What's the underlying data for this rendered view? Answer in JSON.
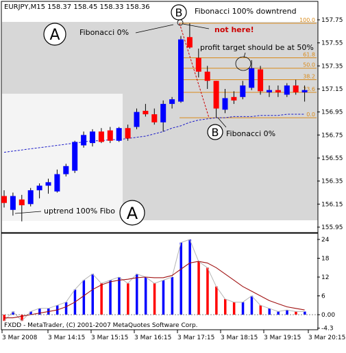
{
  "header": {
    "symbol_text": "EURJPY,M15  158.37 158.45 158.33 158.36",
    "footer_text": "FXDD - MetaTrader, (C) 2001-2007 MetaQuotes Software Corp."
  },
  "annotations": {
    "label_a_top": "A",
    "label_a_bottom": "A",
    "label_b_top": "B",
    "label_b_bottom": "B",
    "fib0_top": "Fibonacci 0%",
    "fib100_down": "Fibonacci 100% downtrend",
    "not_here": "not here!",
    "profit_target": "profit target should be at 50%",
    "fib0_bottom": "Fibonacci 0%",
    "uptrend_fibo": "uptrend 100% Fibo"
  },
  "colors": {
    "bull": "#0000ff",
    "bear": "#ff0000",
    "ma": "#1a1ac8",
    "fib": "#d98a1a",
    "signal": "#cc0000",
    "gray_line": "#b4b4b4",
    "shade": "#d7d7d7"
  },
  "chart_data": [
    {
      "type": "candlestick",
      "title": "EURJPY,M15",
      "ylim": [
        155.9,
        157.8
      ],
      "yticks": [
        "157.75",
        "157.55",
        "157.35",
        "157.15",
        "156.95",
        "156.75",
        "156.55",
        "156.35",
        "156.15",
        "155.95"
      ],
      "ytick_values": [
        157.75,
        157.55,
        157.35,
        157.15,
        156.95,
        156.75,
        156.55,
        156.35,
        156.15,
        155.95
      ],
      "candles": [
        {
          "o": 156.22,
          "h": 156.27,
          "l": 156.12,
          "c": 156.16
        },
        {
          "o": 156.1,
          "h": 156.25,
          "l": 156.05,
          "c": 156.22
        },
        {
          "o": 156.19,
          "h": 156.23,
          "l": 156.0,
          "c": 156.14
        },
        {
          "o": 156.15,
          "h": 156.29,
          "l": 156.13,
          "c": 156.27
        },
        {
          "o": 156.27,
          "h": 156.33,
          "l": 156.2,
          "c": 156.31
        },
        {
          "o": 156.31,
          "h": 156.37,
          "l": 156.24,
          "c": 156.34
        },
        {
          "o": 156.26,
          "h": 156.45,
          "l": 156.25,
          "c": 156.41
        },
        {
          "o": 156.41,
          "h": 156.5,
          "l": 156.39,
          "c": 156.48
        },
        {
          "o": 156.44,
          "h": 156.7,
          "l": 156.42,
          "c": 156.69
        },
        {
          "o": 156.66,
          "h": 156.78,
          "l": 156.64,
          "c": 156.75
        },
        {
          "o": 156.68,
          "h": 156.8,
          "l": 156.65,
          "c": 156.78
        },
        {
          "o": 156.78,
          "h": 156.81,
          "l": 156.68,
          "c": 156.69
        },
        {
          "o": 156.79,
          "h": 156.82,
          "l": 156.68,
          "c": 156.7
        },
        {
          "o": 156.7,
          "h": 156.82,
          "l": 156.69,
          "c": 156.81
        },
        {
          "o": 156.81,
          "h": 156.84,
          "l": 156.7,
          "c": 156.72
        },
        {
          "o": 156.82,
          "h": 156.98,
          "l": 156.8,
          "c": 156.95
        },
        {
          "o": 156.96,
          "h": 157.02,
          "l": 156.91,
          "c": 156.93
        },
        {
          "o": 156.93,
          "h": 156.98,
          "l": 156.84,
          "c": 156.86
        },
        {
          "o": 156.86,
          "h": 157.05,
          "l": 156.78,
          "c": 157.02
        },
        {
          "o": 157.02,
          "h": 157.08,
          "l": 156.98,
          "c": 157.06
        },
        {
          "o": 157.04,
          "h": 157.61,
          "l": 157.03,
          "c": 157.58
        },
        {
          "o": 157.6,
          "h": 157.72,
          "l": 157.5,
          "c": 157.51
        },
        {
          "o": 157.42,
          "h": 157.5,
          "l": 157.25,
          "c": 157.3
        },
        {
          "o": 157.3,
          "h": 157.35,
          "l": 157.15,
          "c": 157.22
        },
        {
          "o": 157.22,
          "h": 157.22,
          "l": 156.9,
          "c": 156.98
        },
        {
          "o": 156.97,
          "h": 157.15,
          "l": 156.94,
          "c": 157.07
        },
        {
          "o": 157.08,
          "h": 157.13,
          "l": 157.02,
          "c": 157.05
        },
        {
          "o": 157.08,
          "h": 157.22,
          "l": 157.06,
          "c": 157.18
        },
        {
          "o": 157.16,
          "h": 157.4,
          "l": 157.14,
          "c": 157.33
        },
        {
          "o": 157.32,
          "h": 157.35,
          "l": 157.1,
          "c": 157.13
        },
        {
          "o": 157.12,
          "h": 157.18,
          "l": 157.08,
          "c": 157.14
        },
        {
          "o": 157.14,
          "h": 157.18,
          "l": 157.08,
          "c": 157.12
        },
        {
          "o": 157.1,
          "h": 157.2,
          "l": 157.08,
          "c": 157.18
        },
        {
          "o": 157.18,
          "h": 157.23,
          "l": 157.1,
          "c": 157.12
        },
        {
          "o": 157.12,
          "h": 157.18,
          "l": 157.04,
          "c": 157.14
        }
      ],
      "moving_average": [
        156.6,
        156.61,
        156.62,
        156.63,
        156.64,
        156.65,
        156.66,
        156.67,
        156.68,
        156.69,
        156.7,
        156.7,
        156.71,
        156.71,
        156.72,
        156.73,
        156.74,
        156.76,
        156.78,
        156.81,
        156.83,
        156.86,
        156.88,
        156.89,
        156.9,
        156.9,
        156.91,
        156.91,
        156.91,
        156.92,
        156.92,
        156.92,
        156.93,
        156.93,
        156.93
      ],
      "fibonacci_levels": [
        {
          "label": "100.0",
          "value": 157.72
        },
        {
          "label": "61.8",
          "value": 157.42
        },
        {
          "label": "50.0",
          "value": 157.33
        },
        {
          "label": "38.2",
          "value": 157.23
        },
        {
          "label": "23.6",
          "value": 157.12
        },
        {
          "label": "0.0",
          "value": 156.9
        }
      ]
    },
    {
      "type": "histogram",
      "yticks": [
        "24",
        "18",
        "12",
        "6",
        "0.00",
        "-4.3"
      ],
      "ytick_values": [
        24,
        18,
        12,
        6,
        0,
        -4.3
      ],
      "ylim": [
        -4.3,
        24
      ],
      "xticks": [
        "3 Mar 2008",
        "3 Mar 14:15",
        "3 Mar 15:15",
        "3 Mar 16:15",
        "3 Mar 17:15",
        "3 Mar 18:15",
        "3 Mar 19:15",
        "3 Mar 20:15"
      ],
      "bars": [
        {
          "v": -2,
          "c": "bear"
        },
        {
          "v": 1,
          "c": "bull"
        },
        {
          "v": -2,
          "c": "bear"
        },
        {
          "v": 1,
          "c": "bull"
        },
        {
          "v": 2,
          "c": "bull"
        },
        {
          "v": 2,
          "c": "bull"
        },
        {
          "v": 3,
          "c": "bull"
        },
        {
          "v": 4,
          "c": "bull"
        },
        {
          "v": 8,
          "c": "bull"
        },
        {
          "v": 11,
          "c": "bull"
        },
        {
          "v": 13,
          "c": "bull"
        },
        {
          "v": 10,
          "c": "bear"
        },
        {
          "v": 11,
          "c": "bull"
        },
        {
          "v": 12,
          "c": "bull"
        },
        {
          "v": 10,
          "c": "bear"
        },
        {
          "v": 13,
          "c": "bull"
        },
        {
          "v": 12,
          "c": "bull"
        },
        {
          "v": 10,
          "c": "bear"
        },
        {
          "v": 11,
          "c": "bull"
        },
        {
          "v": 12,
          "c": "bull"
        },
        {
          "v": 23,
          "c": "bull"
        },
        {
          "v": 24,
          "c": "bull"
        },
        {
          "v": 17,
          "c": "bear"
        },
        {
          "v": 15,
          "c": "bear"
        },
        {
          "v": 9,
          "c": "bear"
        },
        {
          "v": 5,
          "c": "bear"
        },
        {
          "v": 4,
          "c": "bear"
        },
        {
          "v": 4,
          "c": "bull"
        },
        {
          "v": 6,
          "c": "bull"
        },
        {
          "v": 3,
          "c": "bear"
        },
        {
          "v": 2,
          "c": "bull"
        },
        {
          "v": 1,
          "c": "bull"
        },
        {
          "v": 1.5,
          "c": "bull"
        },
        {
          "v": 1,
          "c": "bear"
        },
        {
          "v": 1,
          "c": "bull"
        }
      ],
      "signal_line": [
        -1,
        -1,
        -0.5,
        0,
        0.5,
        1,
        1.5,
        2.5,
        4,
        6,
        8,
        9.5,
        10.5,
        11,
        11.3,
        11.8,
        12,
        11.8,
        11.8,
        12.5,
        14.5,
        16.5,
        17,
        16.5,
        15,
        13,
        11,
        9,
        7.5,
        6,
        4.5,
        3.5,
        2.5,
        2,
        1.5
      ],
      "main_line": [
        -2,
        1,
        -2,
        1,
        2,
        2,
        3,
        4,
        8,
        11,
        13,
        10,
        11,
        12,
        10,
        13,
        12,
        10,
        11,
        12,
        23,
        24,
        17,
        15,
        9,
        5,
        4,
        4,
        6,
        3,
        2,
        1,
        1.5,
        1,
        1
      ]
    }
  ]
}
